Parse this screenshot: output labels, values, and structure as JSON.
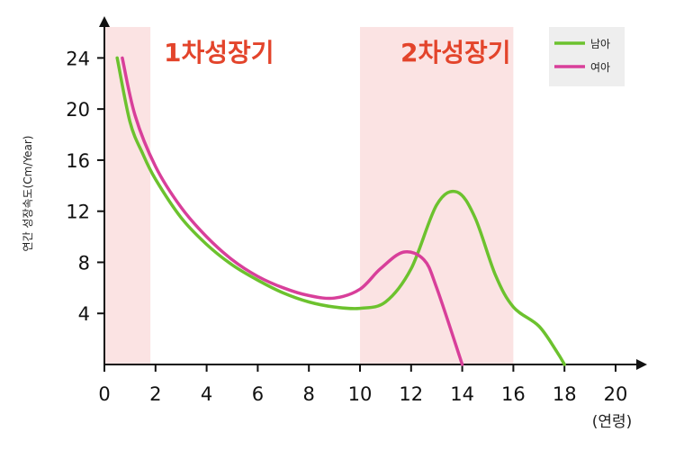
{
  "chart_data": {
    "type": "line",
    "xlabel": "(연령)",
    "ylabel": "연간 성장속도(Cm/Year)",
    "xlim": [
      0,
      20
    ],
    "ylim": [
      0,
      26
    ],
    "x_ticks": [
      0,
      2,
      4,
      6,
      8,
      10,
      12,
      14,
      16,
      18,
      20
    ],
    "y_ticks": [
      4,
      8,
      12,
      16,
      20,
      24
    ],
    "grid": false,
    "legend_position": "top-right",
    "regions": [
      {
        "label": "1차성장기",
        "x_start": 0,
        "x_end": 1.8,
        "color": "#fbe3e3"
      },
      {
        "label": "2차성장기",
        "x_start": 10,
        "x_end": 16,
        "color": "#fbe3e3"
      }
    ],
    "series": [
      {
        "name": "남아",
        "color": "#6cc22e",
        "points": [
          [
            0.5,
            24
          ],
          [
            1,
            19
          ],
          [
            1.5,
            16.5
          ],
          [
            2,
            14.5
          ],
          [
            3,
            11.5
          ],
          [
            4,
            9.4
          ],
          [
            5,
            7.8
          ],
          [
            6,
            6.6
          ],
          [
            7,
            5.6
          ],
          [
            8,
            4.9
          ],
          [
            9,
            4.5
          ],
          [
            10,
            4.4
          ],
          [
            11,
            4.9
          ],
          [
            12,
            7.5
          ],
          [
            13,
            12.5
          ],
          [
            13.8,
            13.5
          ],
          [
            14.5,
            11.5
          ],
          [
            15.3,
            7
          ],
          [
            16,
            4.5
          ],
          [
            17,
            3
          ],
          [
            17.7,
            1
          ],
          [
            18,
            0
          ]
        ]
      },
      {
        "name": "여아",
        "color": "#d83f9a",
        "points": [
          [
            0.7,
            24
          ],
          [
            1.2,
            19.5
          ],
          [
            2,
            15.5
          ],
          [
            3,
            12.3
          ],
          [
            4,
            10
          ],
          [
            5,
            8.2
          ],
          [
            6,
            6.9
          ],
          [
            7,
            6
          ],
          [
            8,
            5.4
          ],
          [
            9,
            5.2
          ],
          [
            10,
            5.9
          ],
          [
            10.8,
            7.5
          ],
          [
            11.7,
            8.8
          ],
          [
            12.5,
            8.2
          ],
          [
            13,
            6
          ],
          [
            14,
            0
          ]
        ]
      }
    ]
  }
}
